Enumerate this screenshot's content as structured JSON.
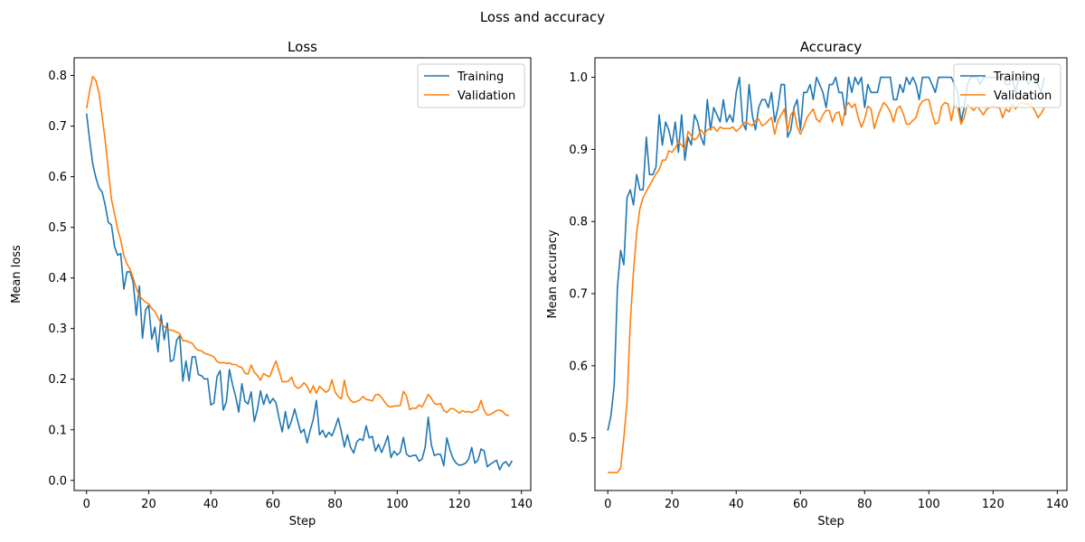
{
  "figure_title": "Loss and accuracy",
  "colors": {
    "training": "#1f77b4",
    "validation": "#ff7f0e"
  },
  "chart_data": [
    {
      "type": "line",
      "title": "Loss",
      "xlabel": "Step",
      "ylabel": "Mean loss",
      "xlim": [
        -4,
        143
      ],
      "ylim": [
        -0.02,
        0.835
      ],
      "xticks": [
        0,
        20,
        40,
        60,
        80,
        100,
        120,
        140
      ],
      "xtick_labels": [
        "0",
        "20",
        "40",
        "60",
        "80",
        "100",
        "120",
        "140"
      ],
      "yticks": [
        0.0,
        0.1,
        0.2,
        0.3,
        0.4,
        0.5,
        0.6,
        0.7,
        0.8
      ],
      "ytick_labels": [
        "0.0",
        "0.1",
        "0.2",
        "0.3",
        "0.4",
        "0.5",
        "0.6",
        "0.7",
        "0.8"
      ],
      "legend": {
        "position": "top-right",
        "entries": [
          "Training",
          "Validation"
        ]
      },
      "series": [
        {
          "name": "Training",
          "x_start": 0,
          "x_step": 1,
          "values": [
            0.725,
            0.672,
            0.625,
            0.598,
            0.578,
            0.57,
            0.544,
            0.51,
            0.505,
            0.462,
            0.445,
            0.448,
            0.378,
            0.412,
            0.412,
            0.392,
            0.326,
            0.384,
            0.281,
            0.337,
            0.346,
            0.279,
            0.303,
            0.254,
            0.327,
            0.278,
            0.311,
            0.235,
            0.238,
            0.277,
            0.286,
            0.196,
            0.236,
            0.197,
            0.244,
            0.244,
            0.209,
            0.207,
            0.2,
            0.201,
            0.149,
            0.153,
            0.205,
            0.217,
            0.139,
            0.155,
            0.219,
            0.189,
            0.166,
            0.135,
            0.191,
            0.156,
            0.151,
            0.175,
            0.116,
            0.14,
            0.177,
            0.15,
            0.17,
            0.152,
            0.162,
            0.153,
            0.122,
            0.096,
            0.136,
            0.102,
            0.118,
            0.141,
            0.117,
            0.094,
            0.101,
            0.074,
            0.099,
            0.121,
            0.158,
            0.09,
            0.099,
            0.085,
            0.095,
            0.088,
            0.104,
            0.123,
            0.097,
            0.066,
            0.09,
            0.065,
            0.054,
            0.076,
            0.082,
            0.079,
            0.108,
            0.084,
            0.087,
            0.058,
            0.071,
            0.055,
            0.071,
            0.088,
            0.045,
            0.058,
            0.05,
            0.056,
            0.085,
            0.052,
            0.047,
            0.049,
            0.05,
            0.038,
            0.042,
            0.065,
            0.125,
            0.07,
            0.049,
            0.052,
            0.051,
            0.029,
            0.084,
            0.06,
            0.043,
            0.034,
            0.03,
            0.031,
            0.034,
            0.042,
            0.065,
            0.034,
            0.04,
            0.062,
            0.058,
            0.027,
            0.032,
            0.036,
            0.04,
            0.021,
            0.033,
            0.037,
            0.028,
            0.039
          ]
        },
        {
          "name": "Validation",
          "x_start": 0,
          "x_step": 1,
          "values": [
            0.735,
            0.77,
            0.798,
            0.79,
            0.765,
            0.72,
            0.672,
            0.613,
            0.556,
            0.527,
            0.496,
            0.475,
            0.444,
            0.428,
            0.417,
            0.4,
            0.38,
            0.364,
            0.358,
            0.352,
            0.349,
            0.34,
            0.334,
            0.322,
            0.31,
            0.304,
            0.299,
            0.297,
            0.296,
            0.293,
            0.29,
            0.276,
            0.276,
            0.273,
            0.271,
            0.262,
            0.257,
            0.256,
            0.251,
            0.249,
            0.247,
            0.244,
            0.235,
            0.232,
            0.233,
            0.231,
            0.232,
            0.229,
            0.229,
            0.225,
            0.223,
            0.212,
            0.21,
            0.228,
            0.214,
            0.207,
            0.198,
            0.211,
            0.207,
            0.205,
            0.222,
            0.236,
            0.215,
            0.195,
            0.195,
            0.196,
            0.204,
            0.187,
            0.182,
            0.185,
            0.193,
            0.186,
            0.173,
            0.187,
            0.172,
            0.186,
            0.18,
            0.174,
            0.178,
            0.199,
            0.175,
            0.166,
            0.161,
            0.198,
            0.168,
            0.158,
            0.154,
            0.156,
            0.159,
            0.166,
            0.16,
            0.159,
            0.157,
            0.169,
            0.17,
            0.164,
            0.155,
            0.147,
            0.145,
            0.147,
            0.147,
            0.148,
            0.176,
            0.167,
            0.14,
            0.143,
            0.142,
            0.149,
            0.145,
            0.157,
            0.17,
            0.162,
            0.152,
            0.15,
            0.152,
            0.138,
            0.134,
            0.141,
            0.142,
            0.138,
            0.133,
            0.138,
            0.135,
            0.136,
            0.134,
            0.137,
            0.14,
            0.158,
            0.138,
            0.129,
            0.13,
            0.134,
            0.138,
            0.139,
            0.136,
            0.129,
            0.129
          ]
        }
      ]
    },
    {
      "type": "line",
      "title": "Accuracy",
      "xlabel": "Step",
      "ylabel": "Mean accuracy",
      "xlim": [
        -4,
        143
      ],
      "ylim": [
        0.427,
        1.027
      ],
      "xticks": [
        0,
        20,
        40,
        60,
        80,
        100,
        120,
        140
      ],
      "xtick_labels": [
        "0",
        "20",
        "40",
        "60",
        "80",
        "100",
        "120",
        "140"
      ],
      "yticks": [
        0.5,
        0.6,
        0.7,
        0.8,
        0.9,
        1.0
      ],
      "ytick_labels": [
        "0.5",
        "0.6",
        "0.7",
        "0.8",
        "0.9",
        "1.0"
      ],
      "legend": {
        "position": "top-right",
        "entries": [
          "Training",
          "Validation"
        ]
      },
      "series": [
        {
          "name": "Training",
          "x_start": 0,
          "x_step": 1,
          "values": [
            0.51,
            0.531,
            0.573,
            0.708,
            0.76,
            0.74,
            0.833,
            0.844,
            0.823,
            0.865,
            0.844,
            0.844,
            0.917,
            0.865,
            0.865,
            0.875,
            0.948,
            0.906,
            0.938,
            0.927,
            0.906,
            0.938,
            0.896,
            0.948,
            0.885,
            0.917,
            0.906,
            0.948,
            0.938,
            0.917,
            0.906,
            0.969,
            0.927,
            0.958,
            0.948,
            0.938,
            0.969,
            0.938,
            0.948,
            0.938,
            0.979,
            1.0,
            0.938,
            0.927,
            0.99,
            0.948,
            0.927,
            0.958,
            0.969,
            0.969,
            0.958,
            0.979,
            0.938,
            0.958,
            0.99,
            0.99,
            0.917,
            0.927,
            0.958,
            0.969,
            0.927,
            0.979,
            0.979,
            0.99,
            0.969,
            1.0,
            0.99,
            0.979,
            0.958,
            0.99,
            0.99,
            1.0,
            0.979,
            0.979,
            0.948,
            1.0,
            0.979,
            1.0,
            0.99,
            1.0,
            0.958,
            0.99,
            0.979,
            0.979,
            0.979,
            1.0,
            1.0,
            1.0,
            1.0,
            0.969,
            0.969,
            0.99,
            0.979,
            1.0,
            0.99,
            1.0,
            0.99,
            0.969,
            1.0,
            1.0,
            1.0,
            0.99,
            0.979,
            1.0,
            1.0,
            1.0,
            1.0,
            1.0,
            0.99,
            0.979,
            0.938,
            0.958,
            0.99,
            1.0,
            1.0,
            1.0,
            0.99,
            1.0,
            1.0,
            1.0,
            1.0,
            1.0,
            1.0,
            1.0,
            0.99,
            0.99,
            1.0,
            0.979,
            1.0,
            1.0,
            1.0,
            0.99,
            1.0,
            1.0,
            0.99,
            0.979,
            1.0
          ]
        },
        {
          "name": "Validation",
          "x_start": 0,
          "x_step": 1,
          "values": [
            0.452,
            0.452,
            0.452,
            0.452,
            0.458,
            0.5,
            0.55,
            0.66,
            0.73,
            0.785,
            0.818,
            0.833,
            0.842,
            0.85,
            0.858,
            0.866,
            0.872,
            0.885,
            0.885,
            0.898,
            0.896,
            0.902,
            0.91,
            0.906,
            0.9,
            0.925,
            0.919,
            0.913,
            0.917,
            0.927,
            0.921,
            0.927,
            0.929,
            0.931,
            0.925,
            0.931,
            0.929,
            0.929,
            0.929,
            0.931,
            0.925,
            0.929,
            0.935,
            0.938,
            0.935,
            0.933,
            0.94,
            0.942,
            0.933,
            0.935,
            0.94,
            0.944,
            0.921,
            0.94,
            0.948,
            0.956,
            0.925,
            0.948,
            0.954,
            0.931,
            0.921,
            0.931,
            0.944,
            0.95,
            0.956,
            0.942,
            0.938,
            0.948,
            0.954,
            0.954,
            0.938,
            0.95,
            0.952,
            0.933,
            0.958,
            0.965,
            0.958,
            0.963,
            0.944,
            0.931,
            0.942,
            0.96,
            0.956,
            0.929,
            0.944,
            0.956,
            0.965,
            0.96,
            0.952,
            0.938,
            0.956,
            0.96,
            0.95,
            0.935,
            0.935,
            0.94,
            0.944,
            0.96,
            0.967,
            0.969,
            0.969,
            0.95,
            0.935,
            0.938,
            0.96,
            0.965,
            0.963,
            0.94,
            0.963,
            0.958,
            0.935,
            0.944,
            0.963,
            0.958,
            0.954,
            0.96,
            0.954,
            0.948,
            0.956,
            0.958,
            0.96,
            0.958,
            0.958,
            0.944,
            0.956,
            0.952,
            0.963,
            0.956,
            0.963,
            0.965,
            0.963,
            0.963,
            0.96,
            0.954,
            0.944,
            0.95,
            0.958
          ]
        }
      ]
    }
  ]
}
